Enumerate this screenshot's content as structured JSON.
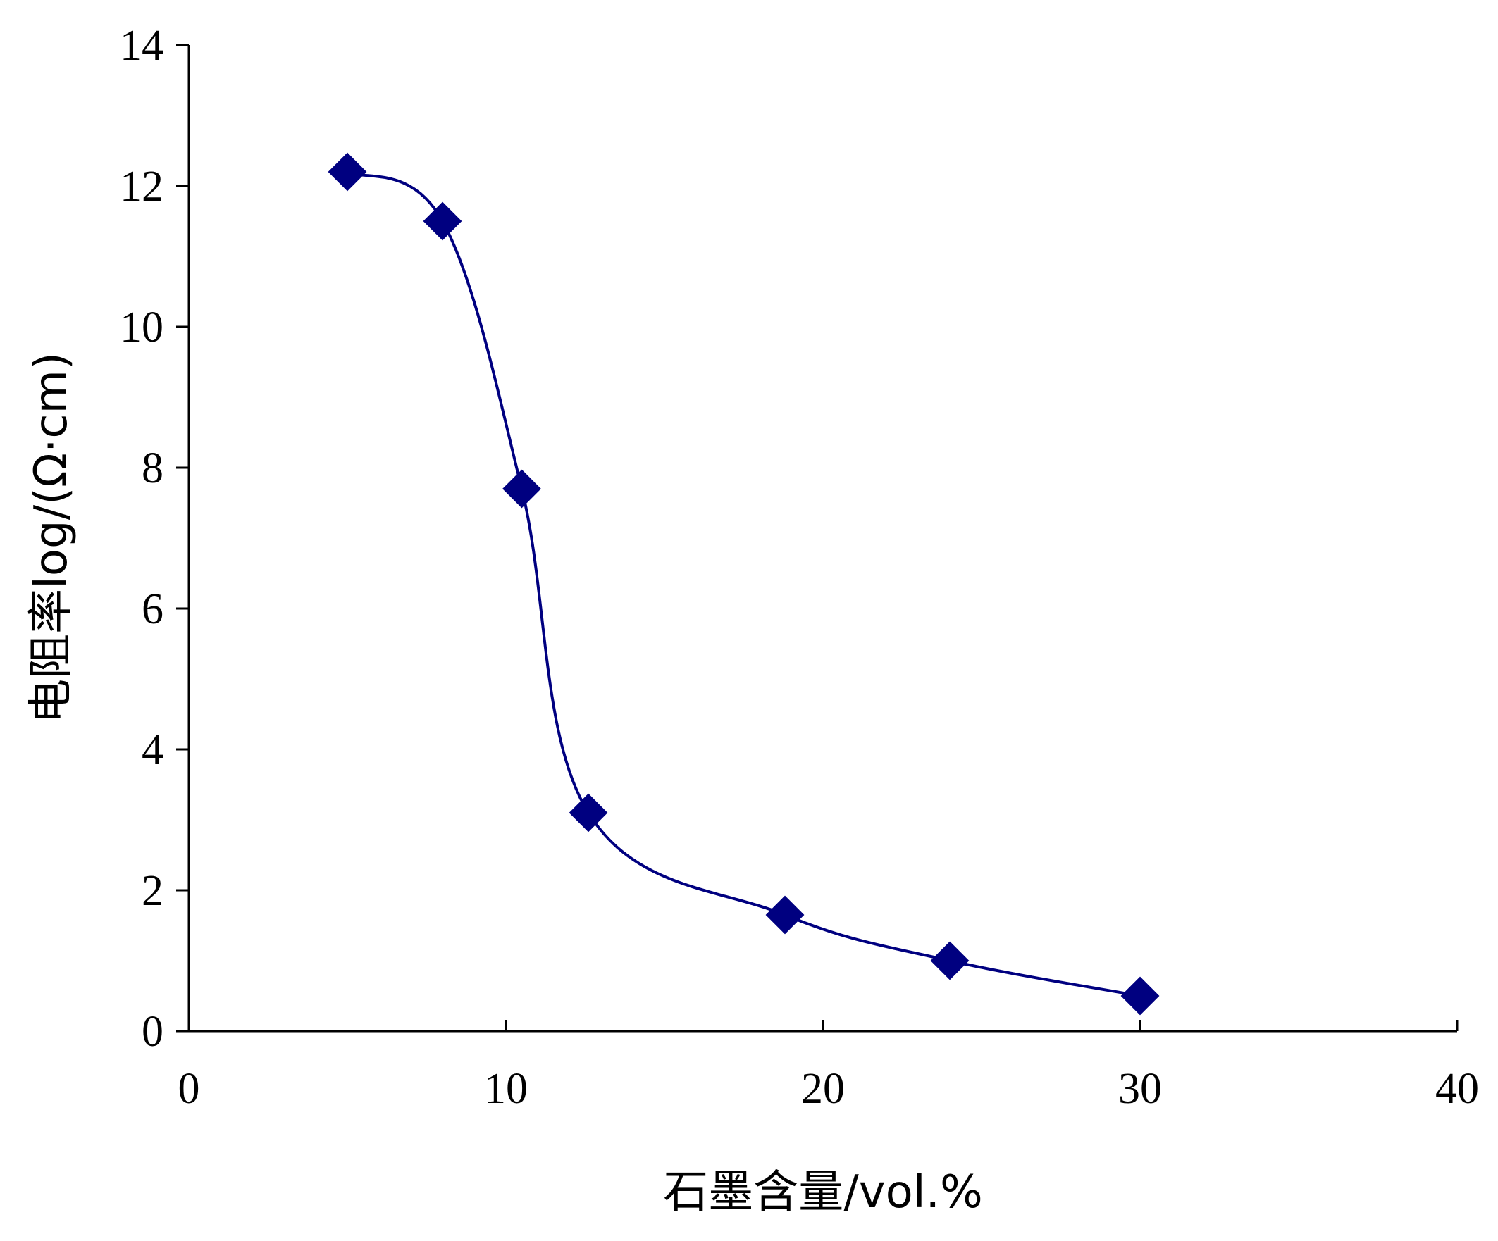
{
  "chart_data": {
    "type": "line",
    "title": "",
    "xlabel": "石墨含量/vol.%",
    "ylabel": "电阻率log/(Ω·cm)",
    "xlim": [
      0,
      40
    ],
    "ylim": [
      0,
      14
    ],
    "x_ticks": [
      0,
      10,
      20,
      30,
      40
    ],
    "y_ticks": [
      0,
      2,
      4,
      6,
      8,
      10,
      12,
      14
    ],
    "grid": false,
    "legend": "none",
    "series": [
      {
        "x": [
          5,
          8,
          10.5,
          12.6,
          18.8,
          24,
          30
        ],
        "y": [
          12.2,
          11.5,
          7.7,
          3.1,
          1.65,
          1.0,
          0.5
        ],
        "color": "#000080",
        "marker": "diamond",
        "smooth": true
      }
    ]
  }
}
